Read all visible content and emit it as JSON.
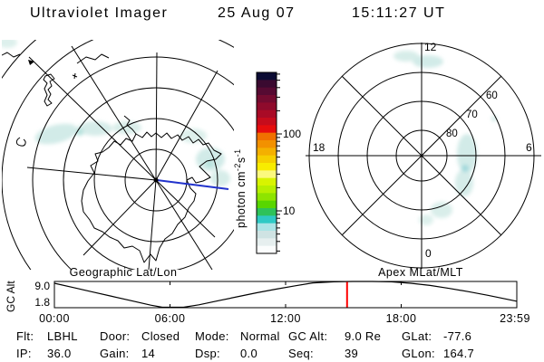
{
  "header": {
    "title": "Ultraviolet Imager",
    "date": "25 Aug 07",
    "time": "15:11:27 UT"
  },
  "left_plot": {
    "caption": "Geographic Lat/Lon",
    "orbit_track_color": "#2233cc"
  },
  "right_plot": {
    "caption": "Apex MLat/MLT",
    "mlt_top": "12",
    "mlt_left": "18",
    "mlt_right": "6",
    "mlt_bottom": "0",
    "ring_80": "80",
    "ring_70": "70",
    "ring_60": "60"
  },
  "colorbar": {
    "unit_parts": {
      "p1": "photon cm",
      "sup1": "-2",
      "p2": "s",
      "sup2": "-1"
    },
    "ticks": [
      "100",
      "10"
    ],
    "scale": {
      "major": [
        100,
        10
      ],
      "minor_mult": [
        2,
        3,
        4,
        5,
        6,
        7,
        8,
        9
      ],
      "decades": [
        1,
        10,
        100
      ]
    },
    "colors": [
      "#0b0b33",
      "#3a0a30",
      "#560a32",
      "#740b30",
      "#8f0b2c",
      "#a90b26",
      "#c60c1c",
      "#e60d0d",
      "#f07000",
      "#f29100",
      "#f4b000",
      "#f6cf00",
      "#f8ec00",
      "#fbf97e",
      "#d8f400",
      "#b7ef00",
      "#8ee400",
      "#58d600",
      "#2ec25a",
      "#2fc9c4",
      "#abe4e6",
      "#cfe3e3",
      "#e6efef",
      "#fbfdfd"
    ]
  },
  "strip_chart": {
    "ylabel": "GC Alt",
    "y_ticks": [
      "9.0",
      "1.8"
    ],
    "x_ticks": [
      "00:00",
      "06:00",
      "12:00",
      "18:00",
      "23:59"
    ]
  },
  "status": {
    "columns": [
      {
        "row1": {
          "label": "Flt:",
          "value": "LBHL"
        },
        "row2": {
          "label": "IP:",
          "value": "36.0"
        }
      },
      {
        "row1": {
          "label": "Door:",
          "value": "Closed"
        },
        "row2": {
          "label": "Gain:",
          "value": "14"
        }
      },
      {
        "row1": {
          "label": "Mode:",
          "value": "Normal"
        },
        "row2": {
          "label": "Dsp:",
          "value": "0.0"
        }
      },
      {
        "row1": {
          "label": "GC Alt:",
          "value": "9.0 Re"
        },
        "row2": {
          "label": "Seq:",
          "value": "39"
        }
      },
      {
        "row1": {
          "label": "GLat:",
          "value": "-77.6"
        },
        "row2": {
          "row2_pad": "",
          "label": "GLon:",
          "value": "164.7"
        }
      }
    ]
  },
  "chart_data": [
    {
      "type": "line",
      "title": "GC Alt vs UT",
      "ylabel": "GC Alt",
      "ylim": [
        1.8,
        9.0
      ],
      "y_tick_labels": [
        "9.0",
        "1.8"
      ],
      "x_tick_labels": [
        "00:00",
        "06:00",
        "12:00",
        "18:00",
        "23:59"
      ],
      "xlim_hours": [
        0,
        24
      ],
      "x_hours": [
        0,
        1,
        2,
        3,
        4,
        5,
        5.6,
        6.0,
        6.7,
        7.5,
        8.5,
        9.5,
        10.5,
        11.5,
        12.5,
        13.4,
        14.5,
        15.5,
        16.5,
        17.5,
        18.5,
        19.5,
        20.5,
        21.5,
        22.5,
        23.5,
        23.98
      ],
      "y_re": [
        8.5,
        7.3,
        6.1,
        4.9,
        3.7,
        2.5,
        1.9,
        1.85,
        1.9,
        2.6,
        3.7,
        4.8,
        5.9,
        6.9,
        7.8,
        8.6,
        8.9,
        9.0,
        9.0,
        8.9,
        8.5,
        7.9,
        7.1,
        6.2,
        5.2,
        4.1,
        3.6
      ],
      "cursor_hours": 15.19,
      "cursor_color": "#ff0000"
    },
    {
      "type": "heatmap",
      "title": "Geographic Lat/Lon",
      "projection": "south polar azimuthal, Antarctica coastline overlay",
      "grid": "latitude circles every 10 deg, meridians every 45 deg, blue orbit track from pole",
      "values_note": "faint auroral UV emission patches, ~3-8 photon cm-2 s-1 (pale cyan)"
    },
    {
      "type": "heatmap",
      "title": "Apex MLat/MLT",
      "rings_mlat": [
        80,
        70,
        60,
        50
      ],
      "mlt_labels": [
        "12",
        "18",
        "6",
        "0"
      ],
      "values_note": "faint auroral UV emission near noon and 03-06 MLT sectors, ~3-8 photon cm-2 s-1"
    }
  ]
}
